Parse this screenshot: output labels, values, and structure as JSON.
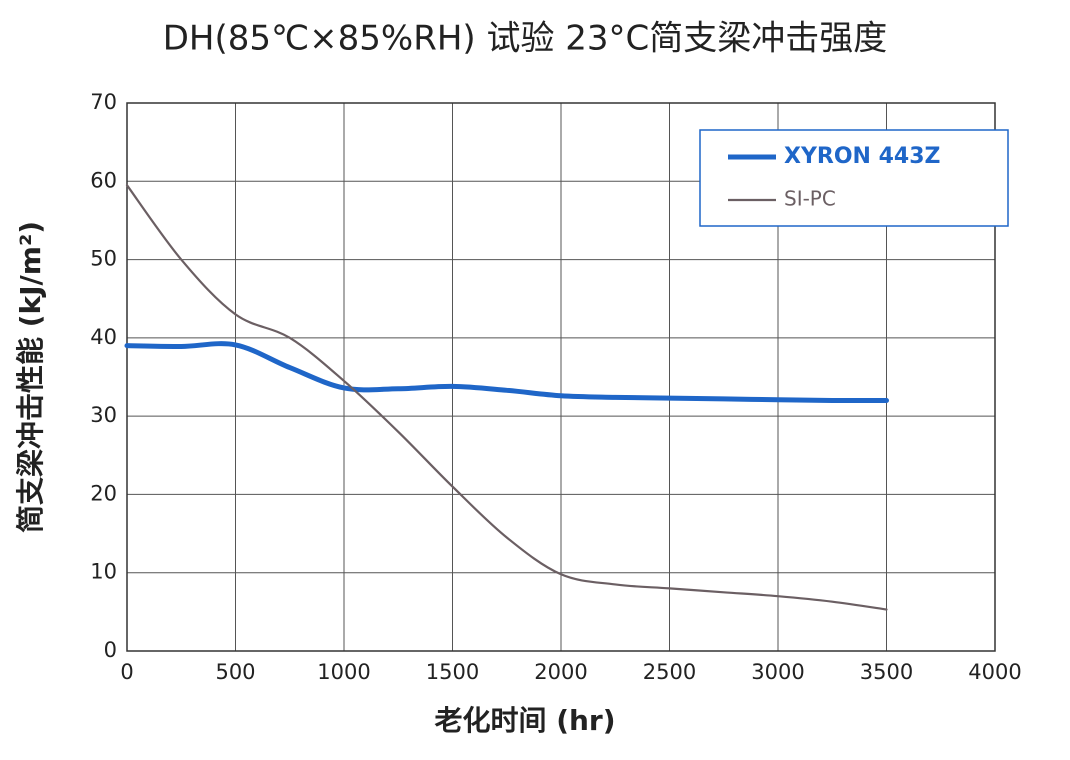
{
  "chart_data": {
    "type": "line",
    "title": "DH(85℃×85%RH) 试验 23°C简支梁冲击强度",
    "x_label": "老化时间 (hr)",
    "y_label": "简支梁冲击性能 (kJ/m²)",
    "x": [
      0,
      250,
      500,
      750,
      1000,
      1250,
      1500,
      1750,
      2000,
      2250,
      2500,
      2750,
      3000,
      3250,
      3500
    ],
    "series": [
      {
        "name": "XYRON 443Z",
        "color": "#1f66c8",
        "values": [
          39,
          38.9,
          39.1,
          36.2,
          33.6,
          33.5,
          33.8,
          33.3,
          32.6,
          32.4,
          32.3,
          32.2,
          32.1,
          32.0,
          32.0
        ]
      },
      {
        "name": "SI-PC",
        "color": "#6b5f63",
        "values": [
          59.5,
          50,
          43,
          40,
          34.5,
          28,
          21,
          14.5,
          9.8,
          8.5,
          8,
          7.5,
          7,
          6.3,
          5.3
        ]
      }
    ],
    "xlim": [
      0,
      4000
    ],
    "xticks": [
      0,
      500,
      1000,
      1500,
      2000,
      2500,
      3000,
      3500,
      4000
    ],
    "ylim": [
      0,
      70
    ],
    "yticks": [
      0,
      10,
      20,
      30,
      40,
      50,
      60,
      70
    ],
    "grid": true,
    "legend": "upper right"
  }
}
